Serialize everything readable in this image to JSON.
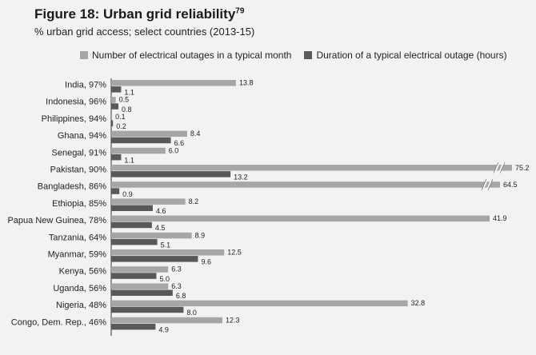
{
  "title": "Figure 18: Urban grid reliability",
  "title_superscript": "79",
  "subtitle": "% urban grid access; select countries (2013-15)",
  "chart_data": {
    "type": "bar",
    "orientation": "horizontal",
    "categories": [
      "India, 97%",
      "Indonesia, 96%",
      "Philippines, 94%",
      "Ghana, 94%",
      "Senegal, 91%",
      "Pakistan, 90%",
      "Bangladesh, 86%",
      "Ethiopia, 85%",
      "Papua New Guinea, 78%",
      "Tanzania, 64%",
      "Myanmar, 59%",
      "Kenya, 56%",
      "Uganda, 56%",
      "Nigeria, 48%",
      "Congo, Dem. Rep., 46%"
    ],
    "series": [
      {
        "name": "Number of electrical outages in a typical month",
        "color": "#a6a6a6",
        "values": [
          13.8,
          0.5,
          0.1,
          8.4,
          6.0,
          75.2,
          64.5,
          8.2,
          41.9,
          8.9,
          12.5,
          6.3,
          6.3,
          32.8,
          12.3
        ],
        "labels": [
          "13.8",
          "0.5",
          "0.1",
          "8.4",
          "6.0",
          "75.2",
          "64.5",
          "8.2",
          "41.9",
          "8.9",
          "12.5",
          "6.3",
          "6.3",
          "32.8",
          "12.3"
        ]
      },
      {
        "name": "Duration of a typical electrical outage (hours)",
        "color": "#595959",
        "values": [
          1.1,
          0.8,
          0.2,
          6.6,
          1.1,
          13.2,
          0.9,
          4.6,
          4.5,
          5.1,
          9.6,
          5.0,
          6.8,
          8.0,
          4.9
        ],
        "labels": [
          "1.1",
          "0.8",
          "0.2",
          "6.6",
          "1.1",
          "13.2",
          "0.9",
          "4.6",
          "4.5",
          "5.1",
          "9.6",
          "5.0",
          "6.8",
          "8.0",
          "4.9"
        ]
      }
    ],
    "axis_break": true,
    "legend_position": "top",
    "grid": false
  }
}
